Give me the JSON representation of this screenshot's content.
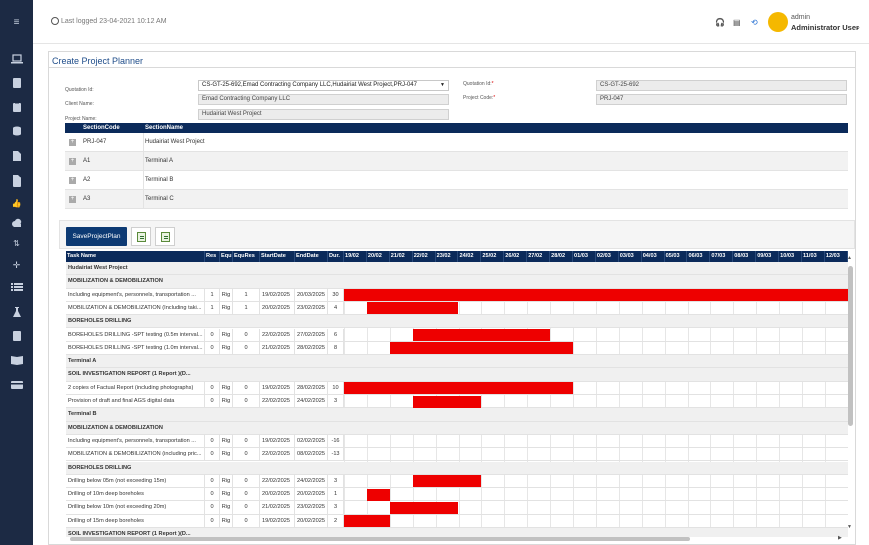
{
  "header": {
    "last_logged_label": "Last logged",
    "last_logged_value": "23-04-2021 10:12 AM",
    "user_role": "admin",
    "user_name": "Administrator User"
  },
  "card": {
    "title": "Create Project Planner"
  },
  "form": {
    "quotation_label": "Quotation Id:",
    "quotation_value": "CS-GT-25-692,Emad Contracting Company LLC,Hudairiat West Project,PRJ-047",
    "client_label": "Client Name:",
    "client_value": "Emad Contracting Company LLC",
    "project_label": "Project Name:",
    "project_value": "Hudairiat West Project",
    "quotation_id_label": "Quotation Id:",
    "quotation_id_value": "CS-GT-25-692",
    "project_code_label": "Project Code:",
    "project_code_value": "PRJ-047"
  },
  "sections": {
    "headers": [
      "SectionCode",
      "SectionName"
    ],
    "rows": [
      {
        "code": "PRJ-047",
        "name": "Hudairiat West Project"
      },
      {
        "code": "A1",
        "name": "Terminal A"
      },
      {
        "code": "A2",
        "name": "Terminal B"
      },
      {
        "code": "A3",
        "name": "Terminal C"
      }
    ]
  },
  "toolbar": {
    "save_label": "SaveProjectPlan"
  },
  "gantt": {
    "columns": [
      "Task Name",
      "Res",
      "Equ",
      "EquRes",
      "StartDate",
      "EndDate",
      "Dur."
    ],
    "dates": [
      "19/02",
      "20/02",
      "21/02",
      "22/02",
      "23/02",
      "24/02",
      "25/02",
      "26/02",
      "27/02",
      "28/02",
      "01/03",
      "02/03",
      "03/03",
      "04/03",
      "05/03",
      "06/03",
      "07/03",
      "08/03",
      "09/03",
      "10/03",
      "11/03",
      "12/03"
    ],
    "rows": [
      {
        "group": true,
        "name": "Hudairiat West Project"
      },
      {
        "group": true,
        "name": "MOBILIZATION & DEMOBILIZATION"
      },
      {
        "name": "Including equipment's, personnels, transportation ...",
        "res": "1",
        "equ": "Rig",
        "equres": "1",
        "start": "19/02/2025",
        "end": "20/03/2025",
        "dur": "30",
        "bar": [
          0,
          22
        ]
      },
      {
        "name": "MOBILIZATION & DEMOBILIZATION (Including taki...",
        "res": "1",
        "equ": "Rig",
        "equres": "1",
        "start": "20/02/2025",
        "end": "23/02/2025",
        "dur": "4",
        "bar": [
          1,
          5
        ]
      },
      {
        "group": true,
        "name": "BOREHOLES DRILLING"
      },
      {
        "name": "BOREHOLES DRILLING -SPT testing (0.5m interval...",
        "res": "0",
        "equ": "Rig",
        "equres": "0",
        "start": "22/02/2025",
        "end": "27/02/2025",
        "dur": "6",
        "bar": [
          3,
          9
        ]
      },
      {
        "name": "BOREHOLES DRILLING -SPT testing (1.0m interval...",
        "res": "0",
        "equ": "Rig",
        "equres": "0",
        "start": "21/02/2025",
        "end": "28/02/2025",
        "dur": "8",
        "bar": [
          2,
          10
        ]
      },
      {
        "group": true,
        "name": "Terminal A"
      },
      {
        "group": true,
        "name": "SOIL INVESTIGATION REPORT (1 Report )(D..."
      },
      {
        "name": "2 copies of Factual Report  (including photographs)",
        "res": "0",
        "equ": "Rig",
        "equres": "0",
        "start": "19/02/2025",
        "end": "28/02/2025",
        "dur": "10",
        "bar": [
          0,
          10
        ]
      },
      {
        "name": "Provision of draft and final AGS digital data",
        "res": "0",
        "equ": "Rig",
        "equres": "0",
        "start": "22/02/2025",
        "end": "24/02/2025",
        "dur": "3",
        "bar": [
          3,
          6
        ]
      },
      {
        "group": true,
        "name": "Terminal B"
      },
      {
        "group": true,
        "name": "MOBILIZATION & DEMOBILIZATION"
      },
      {
        "name": "Including equipment's, personnels, transportation ...",
        "res": "0",
        "equ": "Rig",
        "equres": "0",
        "start": "19/02/2025",
        "end": "02/02/2025",
        "dur": "-16"
      },
      {
        "name": "MOBILIZATION & DEMOBILIZATION (including pric...",
        "res": "0",
        "equ": "Rig",
        "equres": "0",
        "start": "22/02/2025",
        "end": "08/02/2025",
        "dur": "-13"
      },
      {
        "group": true,
        "name": "BOREHOLES DRILLING"
      },
      {
        "name": "Drilling below 05m (not exceeding 15m)",
        "res": "0",
        "equ": "Rig",
        "equres": "0",
        "start": "22/02/2025",
        "end": "24/02/2025",
        "dur": "3",
        "bar": [
          3,
          6
        ]
      },
      {
        "name": "Drilling of 10m deep boreholes",
        "res": "0",
        "equ": "Rig",
        "equres": "0",
        "start": "20/02/2025",
        "end": "20/02/2025",
        "dur": "1",
        "bar": [
          1,
          2
        ]
      },
      {
        "name": "Drilling below 10m (not exceeding 20m)",
        "res": "0",
        "equ": "Rig",
        "equres": "0",
        "start": "21/02/2025",
        "end": "23/02/2025",
        "dur": "3",
        "bar": [
          2,
          5
        ]
      },
      {
        "name": "Drilling of 15m deep boreholes",
        "res": "0",
        "equ": "Rig",
        "equres": "0",
        "start": "19/02/2025",
        "end": "20/02/2025",
        "dur": "2",
        "bar": [
          0,
          2
        ]
      },
      {
        "group": true,
        "name": "SOIL INVESTIGATION REPORT (1 Report )(D..."
      }
    ]
  },
  "colors": {
    "bar": "#ee0000",
    "header": "#0b2a5a",
    "sidebar": "#1c2a44",
    "accent": "#f5b800"
  }
}
